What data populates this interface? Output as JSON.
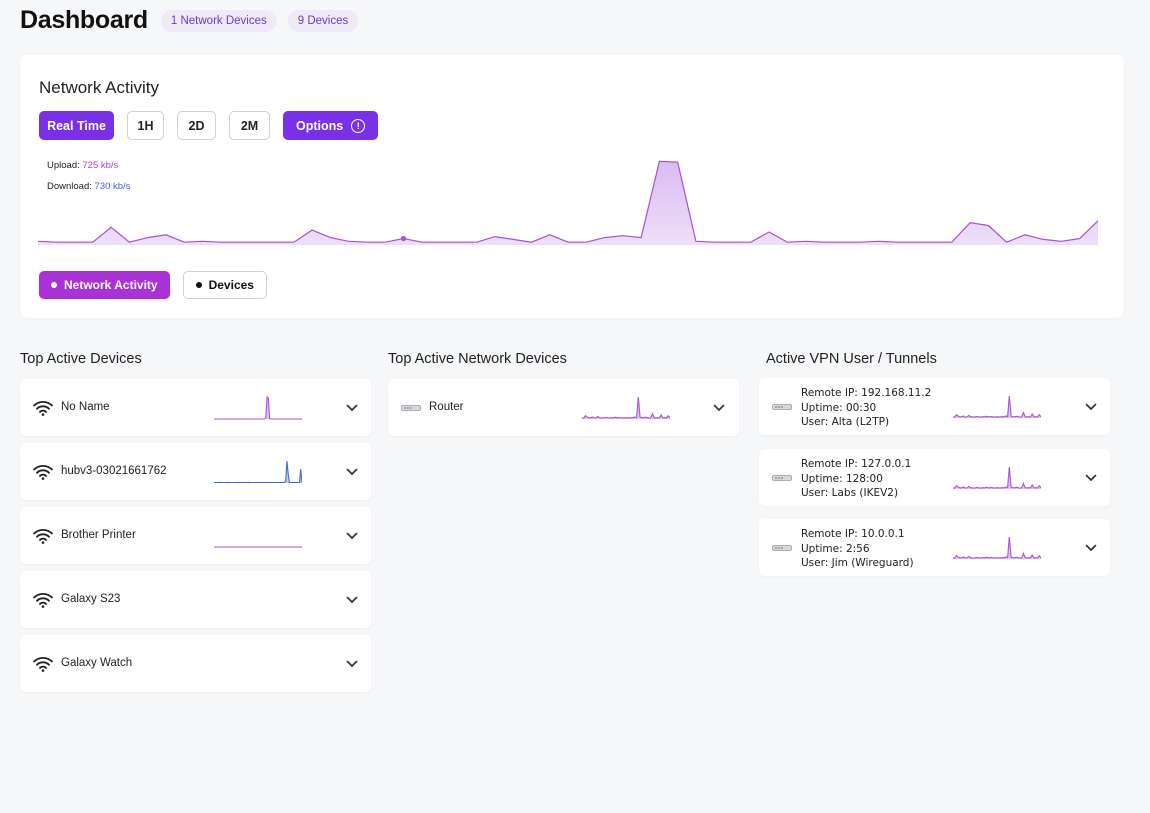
{
  "header": {
    "title": "Dashboard",
    "network_devices_badge": "1 Network Devices",
    "devices_badge": "9 Devices"
  },
  "activity": {
    "title": "Network Activity",
    "ranges": [
      "Real Time",
      "1H",
      "2D",
      "2M"
    ],
    "options_label": "Options",
    "upload_label": "Upload:",
    "upload_value": "725 kb/s",
    "download_label": "Download:",
    "download_value": "730 kb/s",
    "toggle_activity": "Network Activity",
    "toggle_devices": "Devices",
    "colors": {
      "accent": "#7a30e6",
      "area": "#d9b8f0",
      "line": "#a552d8",
      "download": "#4564d6"
    },
    "chart_data": {
      "type": "area",
      "series": [
        {
          "values": [
            4,
            3,
            3,
            3,
            19,
            3,
            8,
            11,
            3,
            4,
            3,
            3,
            3,
            3,
            3,
            16,
            8,
            4,
            3,
            3,
            7,
            3,
            3,
            3,
            3,
            9,
            6,
            3,
            11,
            3,
            3,
            8,
            10,
            8,
            90,
            89,
            4,
            3,
            3,
            3,
            14,
            3,
            4,
            3,
            3,
            3,
            4,
            3,
            3,
            3,
            3,
            24,
            21,
            3,
            11,
            6,
            4,
            7,
            26
          ]
        }
      ],
      "ylim": [
        0,
        100
      ]
    }
  },
  "top_devices": {
    "title": "Top Active Devices",
    "items": [
      {
        "name": "No Name",
        "spark_color": "#a552d8",
        "spark": [
          0,
          0,
          0,
          0,
          0,
          0,
          0,
          0,
          0,
          0,
          0,
          0,
          0,
          0,
          1,
          0,
          0,
          0,
          0,
          0,
          0,
          0,
          0,
          0,
          0,
          0,
          0,
          0,
          0,
          0,
          0,
          0,
          0,
          0,
          0,
          0,
          0,
          0,
          0,
          0,
          5,
          90,
          85,
          2,
          0,
          0,
          0,
          0,
          0,
          0,
          0,
          0,
          0,
          0,
          0,
          0,
          0,
          0,
          0,
          0,
          0,
          0,
          0,
          0,
          0,
          0,
          0,
          0,
          0
        ]
      },
      {
        "name": "hubv3-03021661762",
        "spark_color": "#4a66d8",
        "spark": [
          2,
          2,
          2,
          2,
          3,
          2,
          2,
          2,
          2,
          2,
          2,
          3,
          2,
          2,
          2,
          2,
          2,
          2,
          2,
          3,
          2,
          2,
          2,
          2,
          2,
          2,
          2,
          2,
          3,
          2,
          2,
          2,
          2,
          2,
          2,
          2,
          2,
          2,
          2,
          2,
          2,
          2,
          2,
          2,
          2,
          2,
          2,
          2,
          2,
          2,
          2,
          2,
          2,
          2,
          2,
          2,
          2,
          8,
          95,
          40,
          2,
          2,
          2,
          2,
          3,
          2,
          2,
          2,
          2,
          60,
          2
        ]
      },
      {
        "name": "Brother Printer",
        "spark_color": "#a552d8",
        "spark": [
          0,
          0,
          0,
          0,
          0,
          0,
          0,
          0,
          0,
          0,
          0,
          0,
          0,
          0,
          0,
          0,
          0,
          0,
          0,
          0,
          0
        ]
      },
      {
        "name": "Galaxy S23"
      },
      {
        "name": "Galaxy Watch"
      }
    ]
  },
  "network_devices": {
    "title": "Top Active Network Devices",
    "items": [
      {
        "name": "Router",
        "spark": [
          5,
          4,
          15,
          8,
          5,
          6,
          9,
          4,
          5,
          12,
          6,
          5,
          4,
          6,
          7,
          4,
          5,
          6,
          5,
          8,
          5,
          6,
          7,
          4,
          5,
          6,
          5,
          5,
          6,
          5,
          9,
          6,
          100,
          8,
          6,
          5,
          8,
          6,
          4,
          5,
          25,
          6,
          5,
          6,
          5,
          18,
          5,
          6,
          5,
          15,
          5
        ]
      }
    ]
  },
  "vpn": {
    "title": "Active VPN User / Tunnels",
    "items": [
      {
        "ip": "Remote IP: 192.168.11.2",
        "uptime": "Uptime: 00:30",
        "user": "User: Alta (L2TP)"
      },
      {
        "ip": "Remote IP: 127.0.0.1",
        "uptime": "Uptime: 128:00",
        "user": "User: Labs (IKEV2)"
      },
      {
        "ip": "Remote IP: 10.0.0.1",
        "uptime": "Uptime: 2:56",
        "user": "User: Jim (Wireguard)"
      }
    ],
    "spark": [
      5,
      4,
      15,
      8,
      5,
      6,
      9,
      4,
      5,
      12,
      6,
      5,
      4,
      6,
      7,
      4,
      5,
      6,
      5,
      8,
      5,
      6,
      7,
      4,
      5,
      6,
      5,
      5,
      6,
      5,
      9,
      6,
      100,
      8,
      6,
      5,
      8,
      6,
      4,
      5,
      25,
      6,
      5,
      6,
      5,
      18,
      5,
      6,
      5,
      15,
      5
    ]
  }
}
